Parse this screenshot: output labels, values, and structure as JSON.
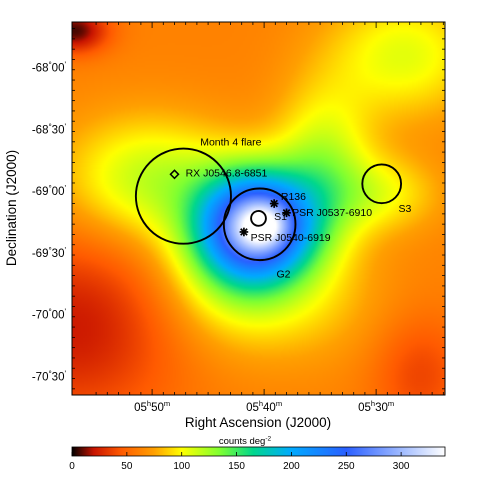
{
  "chart_data": {
    "type": "heatmap",
    "xlabel": "Right Ascension (J2000)",
    "ylabel": "Declination (J2000)",
    "x_ticks": [
      {
        "ra_hours": 5.8333,
        "h": "05",
        "m": "50"
      },
      {
        "ra_hours": 5.6667,
        "h": "05",
        "m": "40"
      },
      {
        "ra_hours": 5.5,
        "h": "05",
        "m": "30"
      }
    ],
    "y_ticks": [
      {
        "dec_deg": -68.0,
        "deg": "-68",
        "min": "00"
      },
      {
        "dec_deg": -68.5,
        "deg": "-68",
        "min": "30"
      },
      {
        "dec_deg": -69.0,
        "deg": "-69",
        "min": "00"
      },
      {
        "dec_deg": -69.5,
        "deg": "-69",
        "min": "30"
      },
      {
        "dec_deg": -70.0,
        "deg": "-70",
        "min": "00"
      },
      {
        "dec_deg": -70.5,
        "deg": "-70",
        "min": "30"
      }
    ],
    "xlim_ra_hours": [
      5.9525,
      5.3975
    ],
    "ylim_dec_deg": [
      -67.63,
      -70.65
    ],
    "colorbar": {
      "label": "counts deg",
      "label_exponent": "-2",
      "range": [
        0,
        340
      ],
      "ticks": [
        0,
        50,
        100,
        150,
        200,
        250,
        300
      ],
      "tick_labels": [
        "0",
        "50",
        "100",
        "150",
        "200",
        "250",
        "300"
      ],
      "colormap_stops": [
        {
          "v": 0,
          "color": "#000000"
        },
        {
          "v": 20,
          "color": "#c81400"
        },
        {
          "v": 45,
          "color": "#ff5a00"
        },
        {
          "v": 75,
          "color": "#ffa000"
        },
        {
          "v": 100,
          "color": "#ffff00"
        },
        {
          "v": 135,
          "color": "#7dff32"
        },
        {
          "v": 165,
          "color": "#00d78c"
        },
        {
          "v": 200,
          "color": "#00aaff"
        },
        {
          "v": 250,
          "color": "#2a5fff"
        },
        {
          "v": 300,
          "color": "#9fbaff"
        },
        {
          "v": 340,
          "color": "#ffffff"
        }
      ]
    },
    "intensity_field": {
      "background": 62,
      "blobs": [
        {
          "ra": 5.6767,
          "dec": -69.274,
          "sx": 0.058,
          "sy": 0.3,
          "amp": 215
        },
        {
          "ra": 5.6683,
          "dec": -69.28,
          "sx": 0.022,
          "sy": 0.11,
          "amp": 60
        },
        {
          "ra": 5.5783,
          "dec": -68.82,
          "sx": 0.05,
          "sy": 0.45,
          "amp": 55
        },
        {
          "ra": 5.715,
          "dec": -69.53,
          "sx": 0.07,
          "sy": 0.4,
          "amp": 45
        },
        {
          "ra": 5.8383,
          "dec": -68.9,
          "sx": 0.09,
          "sy": 0.35,
          "amp": 55
        },
        {
          "ra": 5.49,
          "dec": -69.02,
          "sx": 0.06,
          "sy": 0.22,
          "amp": 35
        },
        {
          "ra": 5.6333,
          "dec": -69.9,
          "sx": 0.1,
          "sy": 0.35,
          "amp": 25
        },
        {
          "ra": 5.4583,
          "dec": -67.9,
          "sx": 0.08,
          "sy": 0.35,
          "amp": 45
        },
        {
          "ra": 5.9483,
          "dec": -67.7,
          "sx": 0.035,
          "sy": 0.13,
          "amp": -55
        },
        {
          "ra": 5.9483,
          "dec": -70.1,
          "sx": 0.11,
          "sy": 0.55,
          "amp": -40
        },
        {
          "ra": 5.435,
          "dec": -70.48,
          "sx": 0.05,
          "sy": 0.35,
          "amp": -25
        }
      ]
    },
    "regions": [
      {
        "name": "Month 4 flare",
        "label": "Month 4 flare",
        "type": "circle",
        "ra": 5.7867,
        "dec": -69.04,
        "radius_dec_deg": 0.385,
        "label_ra": 5.7617,
        "label_dec": -68.63
      },
      {
        "name": "G2",
        "label": "G2",
        "type": "circle",
        "ra": 5.6733,
        "dec": -69.268,
        "radius_dec_deg": 0.29,
        "label_ra": 5.6483,
        "label_dec": -69.7
      },
      {
        "name": "S1",
        "label": "S1",
        "type": "circle",
        "ra": 5.675,
        "dec": -69.22,
        "radius_dec_deg": 0.06,
        "label_ra": 5.6517,
        "label_dec": -69.235
      },
      {
        "name": "S3",
        "label": "S3",
        "type": "circle",
        "ra": 5.4917,
        "dec": -68.94,
        "radius_dec_deg": 0.157,
        "label_ra": 5.4667,
        "label_dec": -69.17
      }
    ],
    "sources": [
      {
        "name": "RX J0546.8-6851",
        "label": "RX J0546.8-6851",
        "marker": "diamond",
        "ra": 5.8,
        "dec": -68.863,
        "label_ra": 5.7835,
        "label_dec": -68.85
      },
      {
        "name": "R136",
        "label": "R136",
        "marker": "asterisk",
        "ra": 5.6517,
        "dec": -69.1,
        "label_ra": 5.6417,
        "label_dec": -69.04
      },
      {
        "name": "PSR J0537-6910",
        "label": "PSR J0537-6910",
        "marker": "asterisk",
        "ra": 5.6333,
        "dec": -69.175,
        "label_ra": 5.625,
        "label_dec": -69.17
      },
      {
        "name": "PSR J0540-6919",
        "label": "PSR J0540-6919",
        "marker": "asterisk",
        "ra": 5.6967,
        "dec": -69.33,
        "label_ra": 5.6867,
        "label_dec": -69.37
      }
    ]
  }
}
